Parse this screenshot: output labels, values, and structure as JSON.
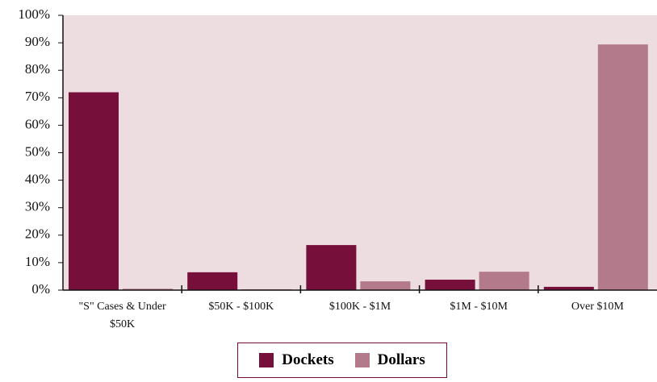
{
  "chart_data": {
    "type": "bar",
    "categories": [
      "\"S\" Cases & Under $50K",
      "$50K - $100K",
      "$100K - $1M",
      "$1M - $10M",
      "Over $10M"
    ],
    "series": [
      {
        "name": "Dockets",
        "color": "#76103a",
        "values": [
          72,
          6.5,
          16.4,
          3.8,
          1.2
        ]
      },
      {
        "name": "Dollars",
        "color": "#b27a8a",
        "values": [
          0.5,
          0.3,
          3.2,
          6.7,
          89.4
        ]
      }
    ],
    "ylim": [
      0,
      100
    ],
    "yticks": [
      {
        "value": 0,
        "label": "0%"
      },
      {
        "value": 10,
        "label": "10%"
      },
      {
        "value": 20,
        "label": "20%"
      },
      {
        "value": 30,
        "label": "30%"
      },
      {
        "value": 40,
        "label": "40%"
      },
      {
        "value": 50,
        "label": "50%"
      },
      {
        "value": 60,
        "label": "60%"
      },
      {
        "value": 70,
        "label": "70%"
      },
      {
        "value": 80,
        "label": "80%"
      },
      {
        "value": 90,
        "label": "90%"
      },
      {
        "value": 100,
        "label": "100%"
      }
    ],
    "legend": "bottom"
  }
}
